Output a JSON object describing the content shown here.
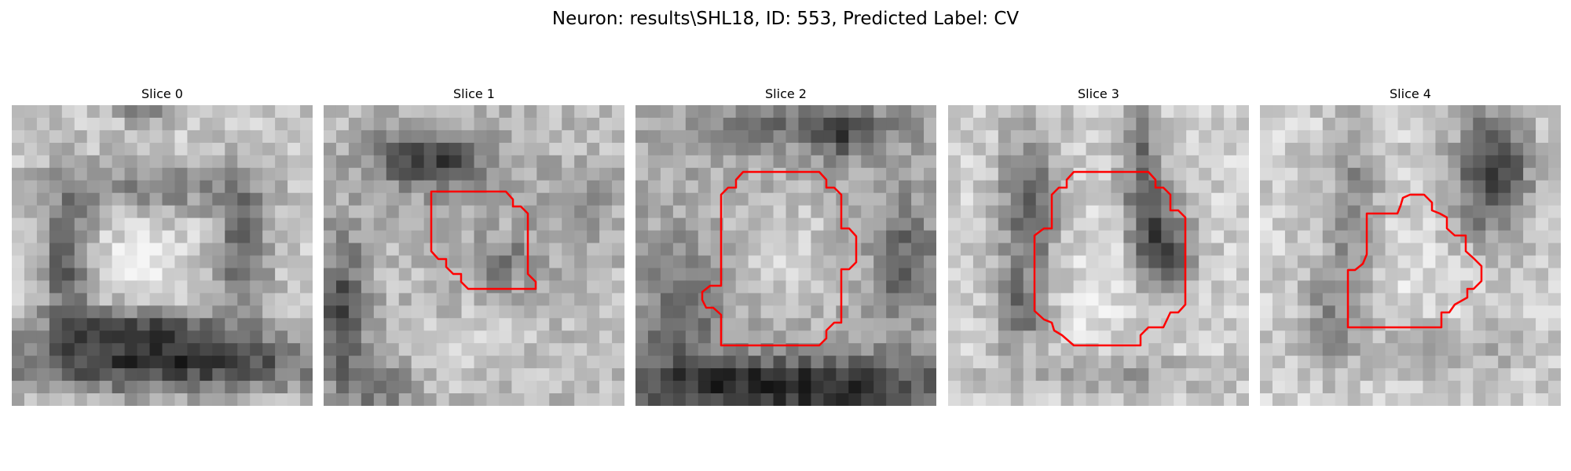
{
  "suptitle": "Neuron: results\\SHL18, ID: 553, Predicted Label: CV",
  "contour_color": "#ff0000",
  "panels": [
    {
      "title": "Slice 0",
      "has_contour": false
    },
    {
      "title": "Slice 1",
      "has_contour": true
    },
    {
      "title": "Slice 2",
      "has_contour": true
    },
    {
      "title": "Slice 3",
      "has_contour": true
    },
    {
      "title": "Slice 4",
      "has_contour": true
    }
  ]
}
